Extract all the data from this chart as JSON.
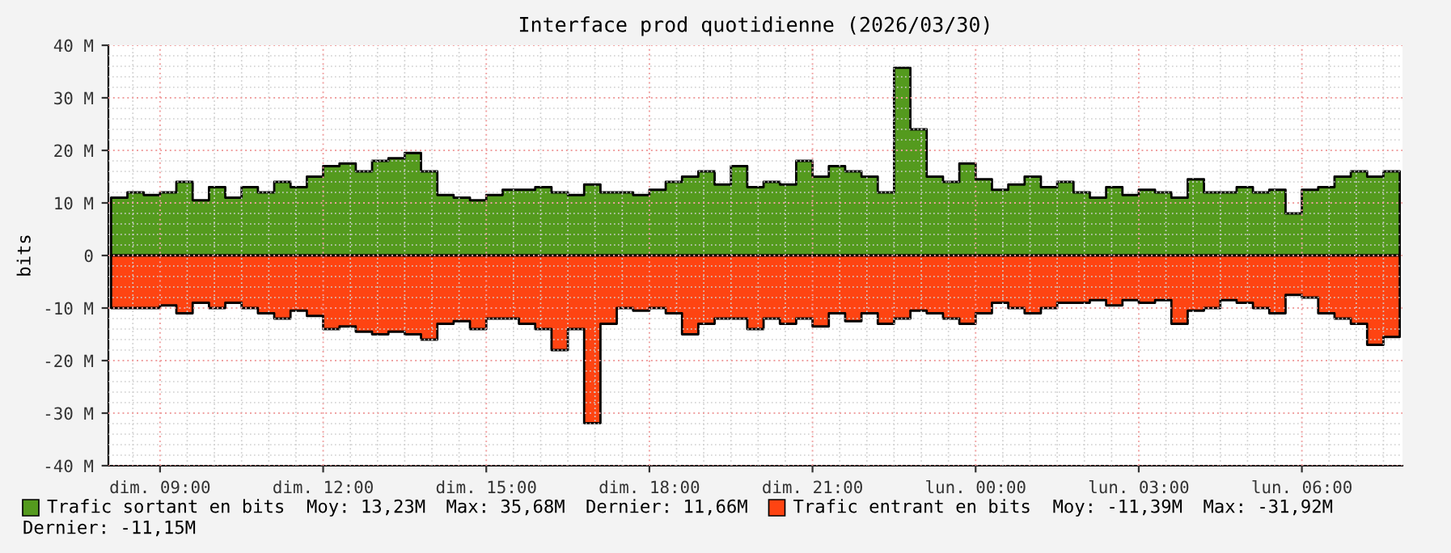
{
  "chart_data": {
    "type": "area",
    "title": "Interface prod quotidienne (2026/03/30)",
    "ylabel": "bits",
    "x": [
      "2026-03-29T08:06",
      "2026-03-29T08:24",
      "2026-03-29T08:42",
      "2026-03-29T09:00",
      "2026-03-29T09:18",
      "2026-03-29T09:36",
      "2026-03-29T09:54",
      "2026-03-29T10:12",
      "2026-03-29T10:30",
      "2026-03-29T10:48",
      "2026-03-29T11:06",
      "2026-03-29T11:24",
      "2026-03-29T11:42",
      "2026-03-29T12:00",
      "2026-03-29T12:18",
      "2026-03-29T12:36",
      "2026-03-29T12:54",
      "2026-03-29T13:12",
      "2026-03-29T13:30",
      "2026-03-29T13:48",
      "2026-03-29T14:06",
      "2026-03-29T14:24",
      "2026-03-29T14:42",
      "2026-03-29T15:00",
      "2026-03-29T15:18",
      "2026-03-29T15:36",
      "2026-03-29T15:54",
      "2026-03-29T16:12",
      "2026-03-29T16:30",
      "2026-03-29T16:48",
      "2026-03-29T17:06",
      "2026-03-29T17:24",
      "2026-03-29T17:42",
      "2026-03-29T18:00",
      "2026-03-29T18:18",
      "2026-03-29T18:36",
      "2026-03-29T18:54",
      "2026-03-29T19:12",
      "2026-03-29T19:30",
      "2026-03-29T19:48",
      "2026-03-29T20:06",
      "2026-03-29T20:24",
      "2026-03-29T20:42",
      "2026-03-29T21:00",
      "2026-03-29T21:18",
      "2026-03-29T21:36",
      "2026-03-29T21:54",
      "2026-03-29T22:12",
      "2026-03-29T22:30",
      "2026-03-29T22:48",
      "2026-03-29T23:06",
      "2026-03-29T23:24",
      "2026-03-29T23:42",
      "2026-03-30T00:00",
      "2026-03-30T00:18",
      "2026-03-30T00:36",
      "2026-03-30T00:54",
      "2026-03-30T01:12",
      "2026-03-30T01:30",
      "2026-03-30T01:48",
      "2026-03-30T02:06",
      "2026-03-30T02:24",
      "2026-03-30T02:42",
      "2026-03-30T03:00",
      "2026-03-30T03:18",
      "2026-03-30T03:36",
      "2026-03-30T03:54",
      "2026-03-30T04:12",
      "2026-03-30T04:30",
      "2026-03-30T04:48",
      "2026-03-30T05:06",
      "2026-03-30T05:24",
      "2026-03-30T05:42",
      "2026-03-30T06:00",
      "2026-03-30T06:18",
      "2026-03-30T06:36",
      "2026-03-30T06:54",
      "2026-03-30T07:12",
      "2026-03-30T07:30",
      "2026-03-30T07:48"
    ],
    "series": [
      {
        "name": "Trafic sortant en bits",
        "color": "#549a1e",
        "values": [
          11,
          12,
          11.5,
          12,
          14,
          10.5,
          13,
          11,
          13,
          12,
          14,
          13,
          15,
          17,
          17.5,
          16,
          18,
          18.5,
          19.5,
          16,
          11.5,
          11,
          10.5,
          11.5,
          12.5,
          12.5,
          13,
          12,
          11.5,
          13.5,
          12,
          12,
          11.5,
          12.5,
          14,
          15,
          16,
          13.5,
          17,
          13,
          14,
          13.5,
          18,
          15,
          17,
          16,
          15,
          12,
          35.7,
          24,
          15,
          14,
          17.5,
          14.5,
          12.5,
          13.5,
          15,
          13,
          14,
          12,
          11,
          13,
          11.5,
          12.5,
          12,
          11,
          14.5,
          12,
          12,
          13,
          12,
          12.5,
          8,
          12.5,
          13,
          15,
          16,
          15,
          16,
          11.7
        ]
      },
      {
        "name": "Trafic entrant en bits",
        "color": "#fe4412",
        "values": [
          -10,
          -10,
          -10,
          -9.5,
          -11,
          -9,
          -10,
          -9,
          -10,
          -11,
          -12,
          -10.5,
          -11.5,
          -14,
          -13.5,
          -14.5,
          -15,
          -14.5,
          -15,
          -16,
          -13,
          -12.5,
          -14,
          -12,
          -12,
          -13,
          -14,
          -18,
          -14,
          -31.9,
          -13,
          -10,
          -10.5,
          -10,
          -11,
          -15,
          -13,
          -12,
          -12,
          -14,
          -12,
          -13,
          -12,
          -13.5,
          -11,
          -12.5,
          -11,
          -13,
          -12,
          -10.5,
          -11,
          -12,
          -13,
          -11,
          -9,
          -10,
          -11,
          -10,
          -9,
          -9,
          -8.5,
          -9.5,
          -8.5,
          -9,
          -8.5,
          -13,
          -10.5,
          -10,
          -8.5,
          -9,
          -10,
          -11,
          -7.5,
          -8,
          -11,
          -12,
          -13,
          -17,
          -15.5,
          -11.2
        ]
      }
    ],
    "xlim": [
      "2026-03-29T08:03",
      "2026-03-30T07:51"
    ],
    "xticks": [
      {
        "value": "2026-03-29T09:00",
        "label": "dim. 09:00"
      },
      {
        "value": "2026-03-29T12:00",
        "label": "dim. 12:00"
      },
      {
        "value": "2026-03-29T15:00",
        "label": "dim. 15:00"
      },
      {
        "value": "2026-03-29T18:00",
        "label": "dim. 18:00"
      },
      {
        "value": "2026-03-29T21:00",
        "label": "dim. 21:00"
      },
      {
        "value": "2026-03-30T00:00",
        "label": "lun. 00:00"
      },
      {
        "value": "2026-03-30T03:00",
        "label": "lun. 03:00"
      },
      {
        "value": "2026-03-30T06:00",
        "label": "lun. 06:00"
      }
    ],
    "ylim": [
      -40,
      40
    ],
    "yticks": [
      {
        "value": -40,
        "label": "-40 M"
      },
      {
        "value": -30,
        "label": "-30 M"
      },
      {
        "value": -20,
        "label": "-20 M"
      },
      {
        "value": -10,
        "label": "-10 M"
      },
      0,
      {
        "value": 10,
        "label": "10 M"
      },
      {
        "value": 20,
        "label": "20 M"
      },
      {
        "value": 30,
        "label": "30 M"
      },
      {
        "value": 40,
        "label": "40 M"
      }
    ],
    "grid": true,
    "legend": "bottom",
    "annotations": [
      "Moy: 13,23M",
      "Max: 35,68M",
      "Dernier: 11,66M",
      "Moy: -11,39M",
      "Max: -31,92M",
      "Dernier: -11,15M"
    ]
  }
}
